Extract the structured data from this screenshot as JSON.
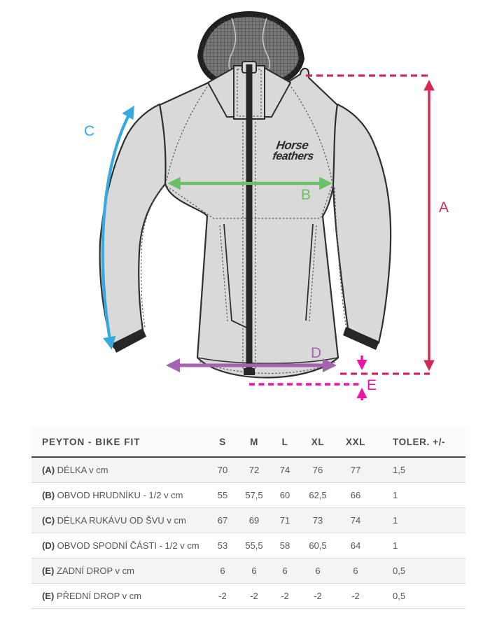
{
  "diagram": {
    "logo": {
      "line1": "Horse",
      "line2": "feathers"
    },
    "labels": {
      "A": "A",
      "B": "B",
      "C": "C",
      "D": "D",
      "E": "E"
    },
    "colors": {
      "A": "#d22a55",
      "B": "#68c164",
      "C": "#36a9e1",
      "D": "#a562b0",
      "E": "#ee13a7"
    },
    "jacket_colors": {
      "body": "#d9d9d9",
      "outline": "#2f2f2f",
      "hood": "#787878",
      "trim": "#262626"
    }
  },
  "table": {
    "title": "PEYTON - BIKE FIT",
    "columns": [
      "S",
      "M",
      "L",
      "XL",
      "XXL",
      "TOLER. +/-"
    ],
    "rows": [
      {
        "key": "(A)",
        "label": "DÉLKA v cm",
        "values": [
          "70",
          "72",
          "74",
          "76",
          "77",
          "1,5"
        ]
      },
      {
        "key": "(B)",
        "label": "OBVOD HRUDNÍKU - 1/2 v cm",
        "values": [
          "55",
          "57,5",
          "60",
          "62,5",
          "66",
          "1"
        ]
      },
      {
        "key": "(C)",
        "label": "DÉLKA RUKÁVU OD ŠVU v cm",
        "values": [
          "67",
          "69",
          "71",
          "73",
          "74",
          "1"
        ]
      },
      {
        "key": "(D)",
        "label": "OBVOD SPODNÍ ČÁSTI - 1/2 v cm",
        "values": [
          "53",
          "55,5",
          "58",
          "60,5",
          "64",
          "1"
        ]
      },
      {
        "key": "(E)",
        "label": "ZADNÍ DROP v cm",
        "values": [
          "6",
          "6",
          "6",
          "6",
          "6",
          "0,5"
        ]
      },
      {
        "key": "(E)",
        "label": "PŘEDNÍ DROP v cm",
        "values": [
          "-2",
          "-2",
          "-2",
          "-2",
          "-2",
          "0,5"
        ]
      }
    ]
  },
  "chart_data": {
    "type": "table",
    "title": "PEYTON - BIKE FIT",
    "columns": [
      "S",
      "M",
      "L",
      "XL",
      "XXL",
      "TOLER. +/-"
    ],
    "rows": [
      [
        "(A) DÉLKA v cm",
        70,
        72,
        74,
        76,
        77,
        1.5
      ],
      [
        "(B) OBVOD HRUDNÍKU - 1/2 v cm",
        55,
        57.5,
        60,
        62.5,
        66,
        1
      ],
      [
        "(C) DÉLKA RUKÁVU OD ŠVU v cm",
        67,
        69,
        71,
        73,
        74,
        1
      ],
      [
        "(D) OBVOD SPODNÍ ČÁSTI - 1/2 v cm",
        53,
        55.5,
        58,
        60.5,
        64,
        1
      ],
      [
        "(E) ZADNÍ DROP v cm",
        6,
        6,
        6,
        6,
        6,
        0.5
      ],
      [
        "(E) PŘEDNÍ DROP v cm",
        -2,
        -2,
        -2,
        -2,
        -2,
        0.5
      ]
    ]
  }
}
